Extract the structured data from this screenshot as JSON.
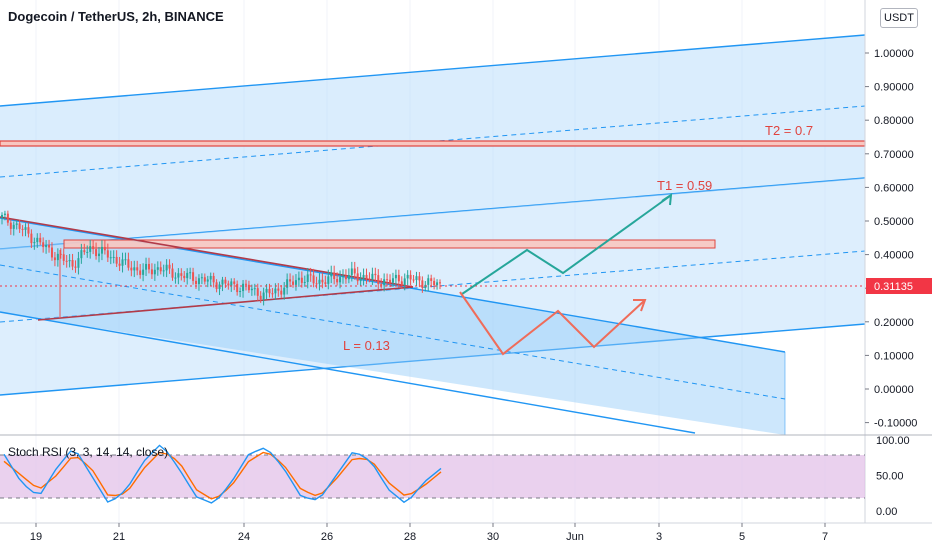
{
  "header": {
    "title": "Dogecoin / TetherUS, 2h, BINANCE",
    "currency": "USDT"
  },
  "price_axis": {
    "ticks": [
      "1.00000",
      "0.90000",
      "0.80000",
      "0.70000",
      "0.60000",
      "0.50000",
      "0.40000",
      "0.30000",
      "0.20000",
      "0.10000",
      "0.00000",
      "-0.10000"
    ],
    "current_price": "0.31135",
    "current_price_color": "#f23645"
  },
  "time_axis": {
    "ticks": [
      "19",
      "21",
      "24",
      "26",
      "28",
      "30",
      "Jun",
      "3",
      "5",
      "7"
    ]
  },
  "annotations": {
    "t2": {
      "label": "T2 = 0.7",
      "color": "#e0443f"
    },
    "t1": {
      "label": "T1 = 0.59",
      "color": "#e0443f"
    },
    "l": {
      "label": "L = 0.13",
      "color": "#e0443f"
    }
  },
  "indicator": {
    "title": "Stoch RSI (3, 3, 14, 14, close)",
    "ticks": [
      "100.00",
      "50.00",
      "0.00"
    ],
    "k_color": "#2196f3",
    "d_color": "#ff6d00"
  },
  "colors": {
    "channel_fill": "#bbdefb",
    "channel_line": "#2196f3",
    "up_candle": "#26a69a",
    "down_candle": "#ef5350",
    "path_up": "#26a69a",
    "path_down": "#ef6c5a"
  },
  "chart_data": {
    "type": "candlestick",
    "title": "Dogecoin / TetherUS, 2h, BINANCE",
    "x_axis": [
      "19",
      "21",
      "24",
      "26",
      "28",
      "30",
      "Jun",
      "3",
      "5",
      "7"
    ],
    "ylim": [
      -0.1,
      1.05
    ],
    "price_points": [
      0.51,
      0.48,
      0.44,
      0.4,
      0.37,
      0.42,
      0.4,
      0.37,
      0.35,
      0.36,
      0.34,
      0.33,
      0.32,
      0.31,
      0.3,
      0.28,
      0.3,
      0.33,
      0.32,
      0.33,
      0.34,
      0.33,
      0.32,
      0.33,
      0.32,
      0.31
    ],
    "last_price": 0.31135,
    "levels": [
      {
        "name": "T2",
        "value": 0.7
      },
      {
        "name": "T1",
        "value": 0.59
      },
      {
        "name": "L",
        "value": 0.13
      }
    ],
    "stoch_rsi": {
      "k": [
        80,
        40,
        20,
        60,
        90,
        50,
        10,
        30,
        70,
        95,
        60,
        20,
        10,
        40,
        80,
        90,
        60,
        20,
        15,
        50,
        85,
        70,
        30,
        10,
        40,
        60
      ],
      "d": [
        70,
        50,
        30,
        50,
        80,
        60,
        20,
        25,
        60,
        85,
        70,
        30,
        15,
        35,
        70,
        85,
        65,
        30,
        20,
        45,
        75,
        72,
        40,
        20,
        35,
        55
      ]
    }
  }
}
